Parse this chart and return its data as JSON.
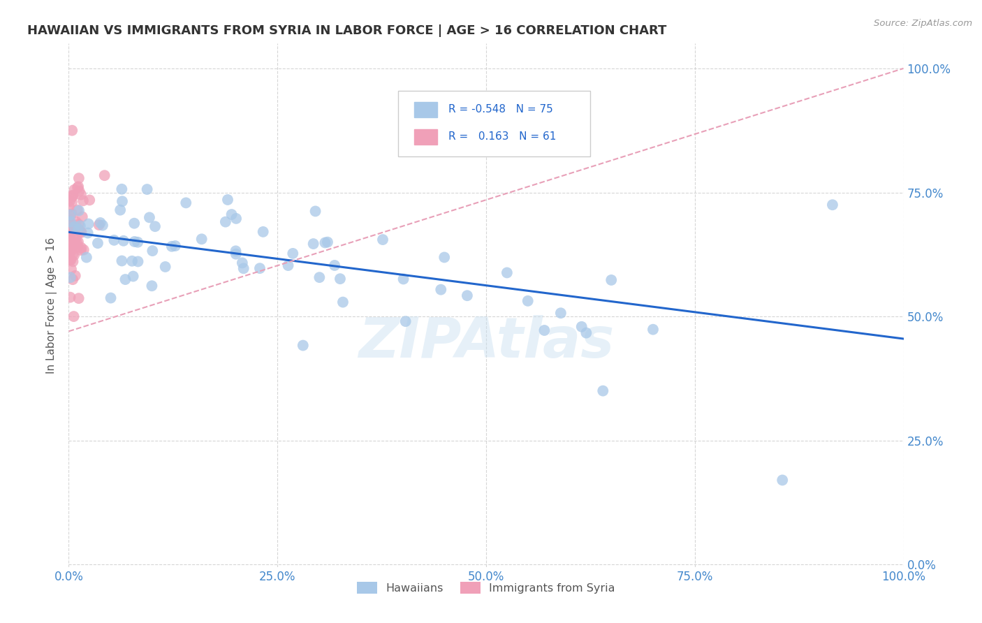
{
  "title": "HAWAIIAN VS IMMIGRANTS FROM SYRIA IN LABOR FORCE | AGE > 16 CORRELATION CHART",
  "source_text": "Source: ZipAtlas.com",
  "ylabel": "In Labor Force | Age > 16",
  "hawaiian_color": "#a8c8e8",
  "syria_color": "#f0a0b8",
  "hawaiian_line_color": "#2266cc",
  "syria_line_color": "#e8a0b8",
  "watermark": "ZIPAtlas",
  "xlim": [
    0.0,
    1.0
  ],
  "ylim": [
    0.0,
    1.0
  ],
  "ticks": [
    0.0,
    0.25,
    0.5,
    0.75,
    1.0
  ],
  "ticklabels": [
    "0.0%",
    "25.0%",
    "50.0%",
    "75.0%",
    "100.0%"
  ],
  "background_color": "#ffffff",
  "grid_color": "#cccccc",
  "tick_color": "#4488cc",
  "title_color": "#333333"
}
